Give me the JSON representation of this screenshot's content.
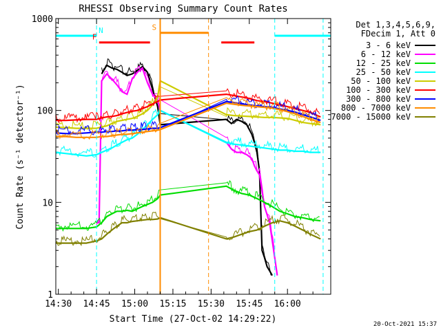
{
  "chart_data": {
    "type": "line",
    "title": "RHESSI Observing Summary Count Rates",
    "xlabel": "Start Time (27-Oct-02 14:29:22)",
    "ylabel": "Count Rate (s⁻¹ detector⁻¹)",
    "yscale": "log",
    "ylim": [
      1,
      1000
    ],
    "xlim_minutes_after_1429": [
      0,
      108
    ],
    "x_ticks": [
      {
        "t": 1,
        "label": "14:30"
      },
      {
        "t": 16,
        "label": "14:45"
      },
      {
        "t": 31,
        "label": "15:00"
      },
      {
        "t": 46,
        "label": "15:15"
      },
      {
        "t": 61,
        "label": "15:30"
      },
      {
        "t": 76,
        "label": "15:45"
      },
      {
        "t": 91,
        "label": "16:00"
      }
    ],
    "y_ticks": [
      {
        "v": 1,
        "label": "1"
      },
      {
        "v": 10,
        "label": "10"
      },
      {
        "v": 100,
        "label": "100"
      },
      {
        "v": 1000,
        "label": "1000"
      }
    ],
    "legend_header": [
      "Det 1,3,4,5,6,9,",
      "FDecim 1, Att 0"
    ],
    "series": [
      {
        "name": "3 - 6 keV",
        "color": "#000000",
        "x": [
          0,
          17,
          18,
          20,
          22,
          24,
          26,
          28,
          30,
          32,
          34,
          36,
          38,
          40,
          41,
          67,
          69,
          71,
          73,
          75,
          77,
          78,
          79,
          80,
          81,
          82,
          83,
          84,
          85
        ],
        "y": [
          null,
          null,
          250,
          310,
          290,
          280,
          260,
          240,
          250,
          270,
          300,
          260,
          170,
          110,
          70,
          80,
          72,
          80,
          76,
          70,
          55,
          45,
          35,
          22,
          3,
          2.5,
          2.0,
          1.8,
          1.6
        ]
      },
      {
        "name": "6 - 12 keV",
        "color": "#ff00ff",
        "x": [
          16,
          17,
          18,
          20,
          22,
          24,
          26,
          28,
          30,
          32,
          34,
          36,
          38,
          40,
          41,
          67,
          69,
          71,
          73,
          75,
          77,
          78,
          79,
          80,
          82,
          84,
          86,
          87
        ],
        "y": [
          6,
          6,
          210,
          250,
          220,
          190,
          160,
          150,
          220,
          260,
          290,
          200,
          150,
          130,
          100,
          45,
          38,
          35,
          35,
          33,
          30,
          25,
          22,
          20,
          9,
          6,
          2.5,
          1.6
        ]
      },
      {
        "name": "12 - 25 keV",
        "color": "#00dd00",
        "x": [
          0,
          4,
          8,
          12,
          16,
          18,
          20,
          22,
          24,
          26,
          28,
          30,
          32,
          34,
          36,
          38,
          40,
          41,
          67,
          70,
          73,
          76,
          79,
          82,
          85,
          88,
          91,
          94,
          97,
          100,
          104
        ],
        "y": [
          5.2,
          5.2,
          5.2,
          5.2,
          5.4,
          6,
          7,
          7.5,
          8,
          8,
          8.2,
          8,
          8.5,
          9,
          9.5,
          10,
          11,
          12,
          15,
          13.5,
          12.5,
          12,
          11,
          10,
          9,
          8,
          7.5,
          7,
          6.8,
          6.5,
          6.3
        ]
      },
      {
        "name": "25 - 50 keV",
        "color": "#00ffff",
        "x": [
          0,
          4,
          8,
          12,
          16,
          18,
          20,
          22,
          24,
          26,
          28,
          30,
          32,
          34,
          36,
          38,
          40,
          41,
          67,
          70,
          73,
          76,
          79,
          82,
          85,
          88,
          91,
          94,
          97,
          100,
          104
        ],
        "y": [
          35,
          34,
          33,
          32,
          33,
          35,
          37,
          39,
          42,
          45,
          48,
          50,
          55,
          62,
          70,
          80,
          90,
          100,
          45,
          43,
          42,
          41,
          40,
          39,
          38,
          37,
          37,
          36,
          36,
          35,
          35
        ]
      },
      {
        "name": "50 - 100 keV",
        "color": "#cccc00",
        "x": [
          0,
          4,
          8,
          12,
          16,
          18,
          20,
          22,
          24,
          26,
          28,
          30,
          32,
          34,
          36,
          38,
          40,
          41,
          67,
          70,
          73,
          76,
          79,
          82,
          85,
          88,
          91,
          94,
          97,
          100,
          104
        ],
        "y": [
          66,
          65,
          64,
          64,
          64,
          66,
          68,
          72,
          76,
          78,
          80,
          82,
          86,
          92,
          100,
          115,
          140,
          210,
          90,
          88,
          87,
          86,
          85,
          84,
          84,
          83,
          82,
          78,
          74,
          72,
          70
        ]
      },
      {
        "name": "100 - 300 keV",
        "color": "#ff0000",
        "x": [
          0,
          4,
          8,
          12,
          16,
          18,
          20,
          22,
          24,
          26,
          28,
          30,
          32,
          34,
          36,
          38,
          40,
          41,
          67,
          70,
          73,
          76,
          79,
          82,
          85,
          88,
          91,
          94,
          97,
          100,
          104
        ],
        "y": [
          78,
          78,
          79,
          80,
          80,
          83,
          85,
          86,
          88,
          92,
          95,
          98,
          100,
          105,
          110,
          118,
          125,
          130,
          150,
          145,
          140,
          135,
          128,
          125,
          120,
          115,
          110,
          105,
          100,
          95,
          85
        ]
      },
      {
        "name": "300 - 800 keV",
        "color": "#0000ff",
        "x": [
          0,
          4,
          8,
          12,
          16,
          18,
          20,
          22,
          24,
          26,
          28,
          30,
          32,
          34,
          36,
          38,
          40,
          41,
          67,
          70,
          73,
          76,
          79,
          82,
          85,
          88,
          91,
          94,
          97,
          100,
          104
        ],
        "y": [
          57,
          56,
          56,
          57,
          58,
          58,
          59,
          59,
          60,
          60,
          61,
          61,
          62,
          62,
          63,
          64,
          64,
          65,
          125,
          122,
          118,
          115,
          112,
          110,
          108,
          104,
          100,
          96,
          90,
          85,
          78
        ]
      },
      {
        "name": "800 - 7000 keV",
        "color": "#ff8c00",
        "x": [
          0,
          4,
          8,
          12,
          16,
          18,
          20,
          22,
          24,
          26,
          28,
          30,
          32,
          34,
          36,
          38,
          40,
          41,
          67,
          70,
          73,
          76,
          79,
          82,
          85,
          88,
          91,
          94,
          97,
          100,
          104
        ],
        "y": [
          52,
          52,
          51,
          51,
          51,
          52,
          52,
          53,
          54,
          55,
          55,
          56,
          57,
          58,
          59,
          60,
          61,
          62,
          120,
          117,
          114,
          112,
          110,
          108,
          106,
          102,
          97,
          92,
          86,
          80,
          74
        ]
      },
      {
        "name": "7000 - 15000 keV",
        "color": "#808000",
        "x": [
          0,
          4,
          8,
          12,
          16,
          18,
          20,
          22,
          24,
          26,
          28,
          30,
          32,
          34,
          36,
          38,
          40,
          41,
          67,
          70,
          73,
          76,
          79,
          82,
          85,
          88,
          91,
          94,
          97,
          100,
          104
        ],
        "y": [
          3.6,
          3.6,
          3.6,
          3.6,
          3.8,
          4,
          4.5,
          5,
          5.5,
          6,
          6,
          6.2,
          6.3,
          6.4,
          6.5,
          6.5,
          6.6,
          6.8,
          4,
          4.2,
          4.5,
          4.8,
          5,
          5.5,
          6,
          6.3,
          6,
          5.5,
          5,
          4.5,
          4
        ]
      }
    ],
    "annotations": [
      {
        "label": "N",
        "color": "#00ffff",
        "kind": "night",
        "intervals": [
          [
            0,
            16
          ],
          [
            86,
            108
          ]
        ],
        "level": 650,
        "boundaries": [
          16,
          86,
          105
        ]
      },
      {
        "label": "S",
        "color": "#ff8c00",
        "kind": "saa",
        "intervals": [
          [
            41,
            60
          ]
        ],
        "level": 700,
        "boundaries": [
          41,
          60
        ]
      },
      {
        "label": "F",
        "color": "#ff0000",
        "kind": "flare",
        "intervals": [
          [
            17,
            37
          ],
          [
            65,
            78
          ]
        ],
        "level": 550,
        "boundaries": []
      }
    ]
  },
  "legend_labels": [
    "3 - 6 keV",
    "6 - 12 keV",
    "12 - 25 keV",
    "25 - 50 keV",
    "50 - 100 keV",
    "100 - 300 keV",
    "300 - 800 keV",
    "800 - 7000 keV",
    "7000 - 15000 keV"
  ],
  "footer_timestamp": "20-Oct-2021 15:37"
}
